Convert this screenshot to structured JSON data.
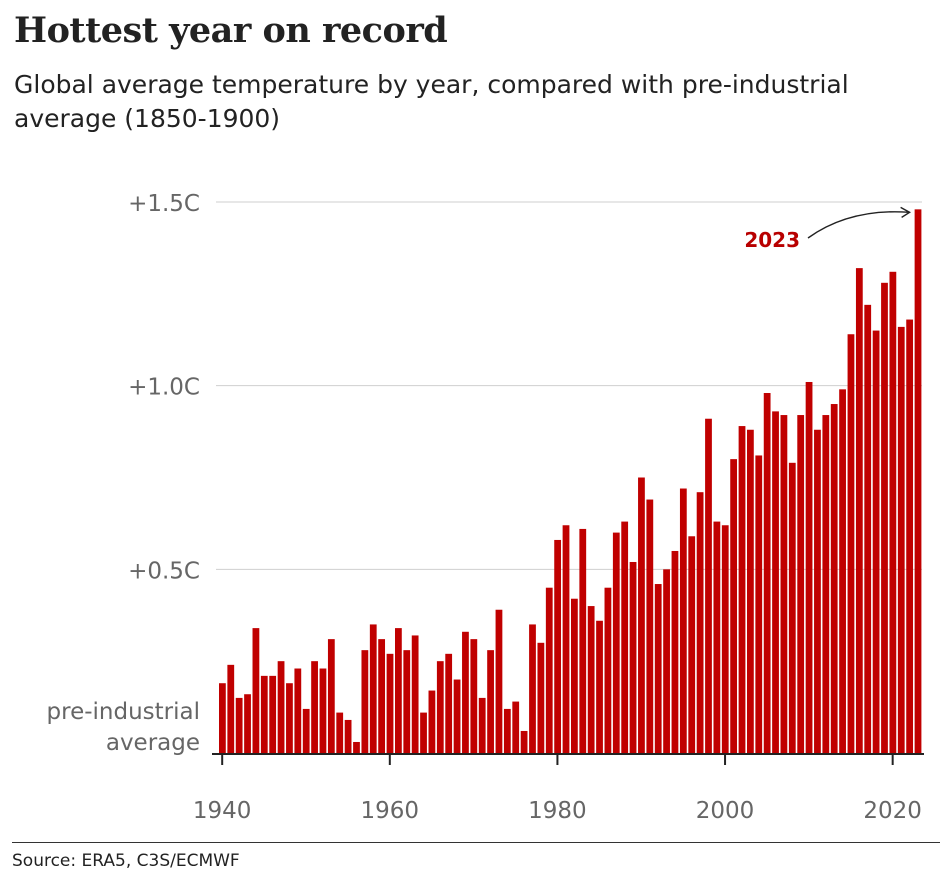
{
  "title": "Hottest year on record",
  "subtitle": "Global average temperature by year, compared with pre-industrial average (1850-1900)",
  "source": "Source: ERA5, C3S/ECMWF",
  "colors": {
    "bar": "#c00000",
    "annotation": "#b80000",
    "grid": "#cfcfcf",
    "axis_text": "#666666"
  },
  "chart_data": {
    "type": "bar",
    "title": "Hottest year on record",
    "xlabel": "",
    "ylabel": "",
    "ylim": [
      0,
      1.5
    ],
    "y_ticks": [
      {
        "value": 0,
        "label_lines": [
          "pre-industrial",
          "average"
        ]
      },
      {
        "value": 0.5,
        "label_lines": [
          "+0.5C"
        ]
      },
      {
        "value": 1.0,
        "label_lines": [
          "+1.0C"
        ]
      },
      {
        "value": 1.5,
        "label_lines": [
          "+1.5C"
        ]
      }
    ],
    "x_ticks": [
      "1940",
      "1960",
      "1980",
      "2000",
      "2020"
    ],
    "grid": true,
    "annotation": {
      "text": "2023",
      "target": "2023"
    },
    "categories": [
      "1940",
      "1941",
      "1942",
      "1943",
      "1944",
      "1945",
      "1946",
      "1947",
      "1948",
      "1949",
      "1950",
      "1951",
      "1952",
      "1953",
      "1954",
      "1955",
      "1956",
      "1957",
      "1958",
      "1959",
      "1960",
      "1961",
      "1962",
      "1963",
      "1964",
      "1965",
      "1966",
      "1967",
      "1968",
      "1969",
      "1970",
      "1971",
      "1972",
      "1973",
      "1974",
      "1975",
      "1976",
      "1977",
      "1978",
      "1979",
      "1980",
      "1981",
      "1982",
      "1983",
      "1984",
      "1985",
      "1986",
      "1987",
      "1988",
      "1989",
      "1990",
      "1991",
      "1992",
      "1993",
      "1994",
      "1995",
      "1996",
      "1997",
      "1998",
      "1999",
      "2000",
      "2001",
      "2002",
      "2003",
      "2004",
      "2005",
      "2006",
      "2007",
      "2008",
      "2009",
      "2010",
      "2011",
      "2012",
      "2013",
      "2014",
      "2015",
      "2016",
      "2017",
      "2018",
      "2019",
      "2020",
      "2021",
      "2022",
      "2023"
    ],
    "values": [
      0.19,
      0.24,
      0.15,
      0.16,
      0.34,
      0.21,
      0.21,
      0.25,
      0.19,
      0.23,
      0.12,
      0.25,
      0.23,
      0.31,
      0.11,
      0.09,
      0.03,
      0.28,
      0.35,
      0.31,
      0.27,
      0.34,
      0.28,
      0.32,
      0.11,
      0.17,
      0.25,
      0.27,
      0.2,
      0.33,
      0.31,
      0.15,
      0.28,
      0.39,
      0.12,
      0.14,
      0.06,
      0.35,
      0.3,
      0.45,
      0.58,
      0.62,
      0.42,
      0.61,
      0.4,
      0.36,
      0.45,
      0.6,
      0.63,
      0.52,
      0.75,
      0.69,
      0.46,
      0.5,
      0.55,
      0.72,
      0.59,
      0.71,
      0.91,
      0.63,
      0.62,
      0.8,
      0.89,
      0.88,
      0.81,
      0.98,
      0.93,
      0.92,
      0.79,
      0.92,
      1.01,
      0.88,
      0.92,
      0.95,
      0.99,
      1.14,
      1.32,
      1.22,
      1.15,
      1.28,
      1.31,
      1.16,
      1.18,
      1.48
    ]
  }
}
